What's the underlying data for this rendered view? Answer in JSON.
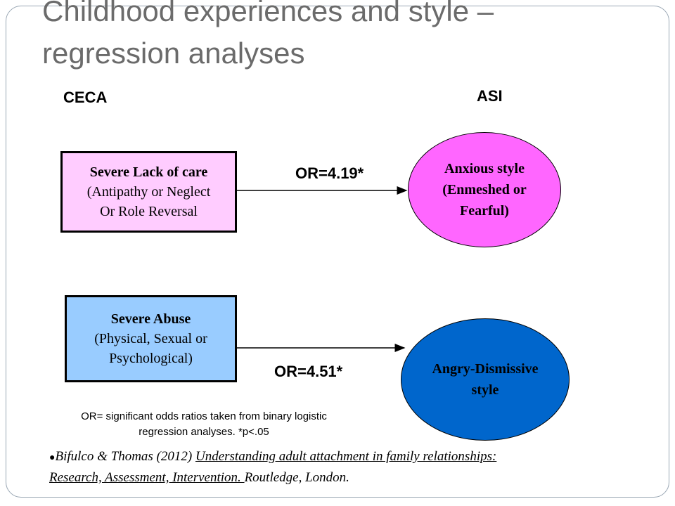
{
  "slide": {
    "title_line1": "Childhood experiences and style –",
    "title_line2": "regression analyses"
  },
  "columns": {
    "left": "CECA",
    "right": "ASI"
  },
  "boxes": {
    "lack_of_care": {
      "line1": "Severe Lack of care",
      "line2": "(Antipathy or Neglect",
      "line3": "Or Role Reversal",
      "fill": "#ffccff"
    },
    "abuse": {
      "line1": "Severe Abuse",
      "line2": "(Physical, Sexual or",
      "line3": "Psychological)",
      "fill": "#99ccff"
    }
  },
  "ellipses": {
    "anxious": {
      "line1": "Anxious style",
      "line2": "(Enmeshed or",
      "line3": "Fearful)",
      "fill": "#ff66ff"
    },
    "angry": {
      "line1": "Angry-Dismissive",
      "line2": "style",
      "fill": "#0066cc"
    }
  },
  "odds_ratios": {
    "top": "OR=4.19*",
    "bottom": "OR=4.51*"
  },
  "footnote": {
    "line1": "OR= significant odds ratios taken from binary logistic",
    "line2": "regression analyses. *p<.05"
  },
  "citation": {
    "bullet": "",
    "authors": "Bifulco & Thomas (2012) ",
    "title_part1": "Understanding adult attachment in family relationships:",
    "title_part2": "Research, Assessment, Intervention. ",
    "publisher": "Routledge, London."
  }
}
